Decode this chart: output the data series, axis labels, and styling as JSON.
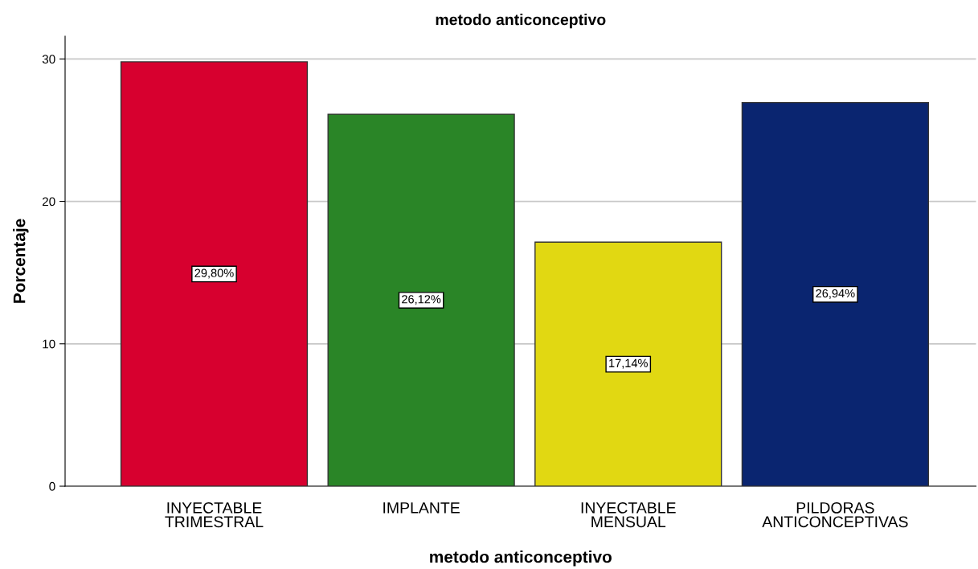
{
  "chart_data": {
    "type": "bar",
    "title": "metodo anticonceptivo",
    "xlabel": "metodo anticonceptivo",
    "ylabel": "Porcentaje",
    "categories": [
      "INYECTABLE\nTRIMESTRAL",
      "IMPLANTE",
      "INYECTABLE\nMENSUAL",
      "PILDORAS\nANTICONCEPTIVAS"
    ],
    "values": [
      29.8,
      26.12,
      17.14,
      26.94
    ],
    "colors": [
      "#d7002f",
      "#2a8527",
      "#e1d812",
      "#0a2570"
    ],
    "value_labels": [
      "29,80%",
      "26,12%",
      "17,14%",
      "26,94%"
    ],
    "ylim": [
      0,
      31.6
    ],
    "yticks": [
      0,
      10,
      20,
      30
    ],
    "grid": "y",
    "legend": false
  }
}
